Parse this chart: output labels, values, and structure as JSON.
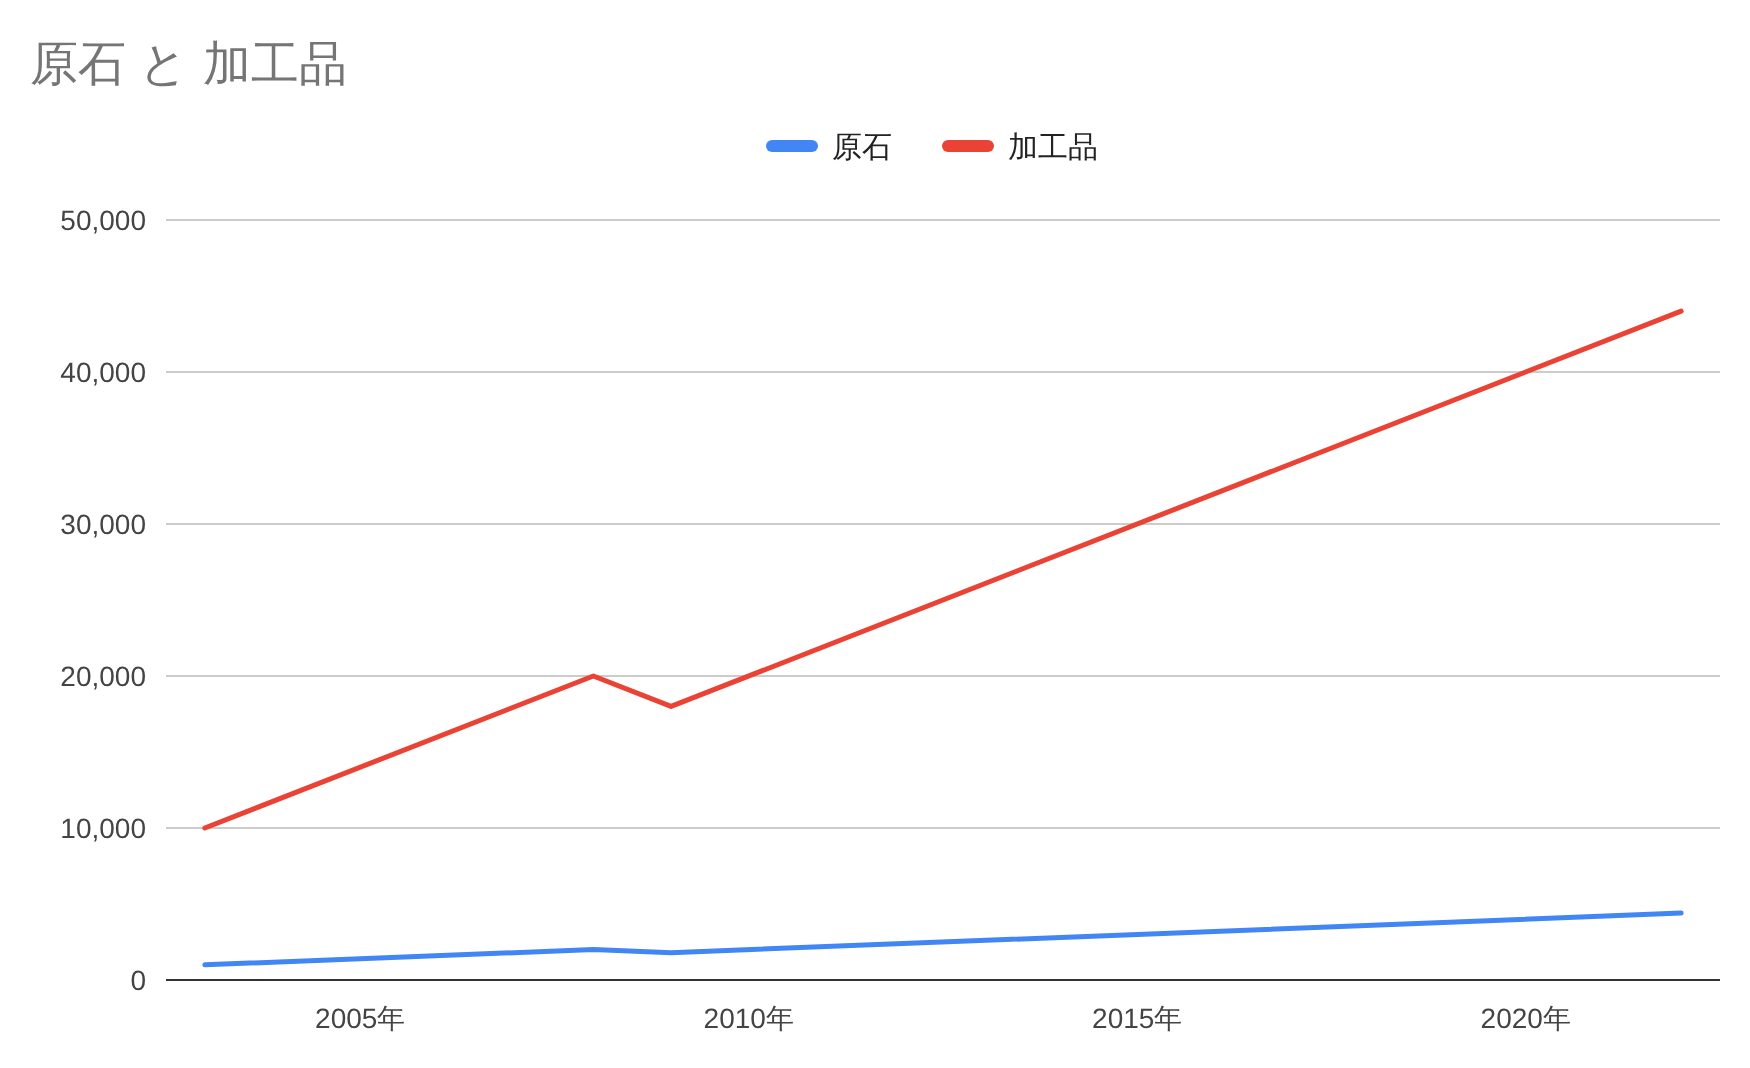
{
  "chart_data": {
    "type": "line",
    "title": "原石 と 加工品",
    "x": [
      2003,
      2008,
      2009,
      2022
    ],
    "series": [
      {
        "name": "原石",
        "color": "#4285f4",
        "values": [
          1000,
          2000,
          1800,
          4400
        ]
      },
      {
        "name": "加工品",
        "color": "#ea4335",
        "values": [
          10000,
          20000,
          18000,
          44000
        ]
      }
    ],
    "xlim": [
      2002.5,
      2022.5
    ],
    "xticks": [
      {
        "value": 2005,
        "label": "2005年"
      },
      {
        "value": 2010,
        "label": "2010年"
      },
      {
        "value": 2015,
        "label": "2015年"
      },
      {
        "value": 2020,
        "label": "2020年"
      }
    ],
    "ylim": [
      0,
      50000
    ],
    "yticks": [
      {
        "value": 0,
        "label": "0"
      },
      {
        "value": 10000,
        "label": "10,000"
      },
      {
        "value": 20000,
        "label": "20,000"
      },
      {
        "value": 30000,
        "label": "30,000"
      },
      {
        "value": 40000,
        "label": "40,000"
      },
      {
        "value": 50000,
        "label": "50,000"
      }
    ],
    "grid": "y",
    "legend": "top",
    "marker": "none",
    "line_style": "solid"
  }
}
